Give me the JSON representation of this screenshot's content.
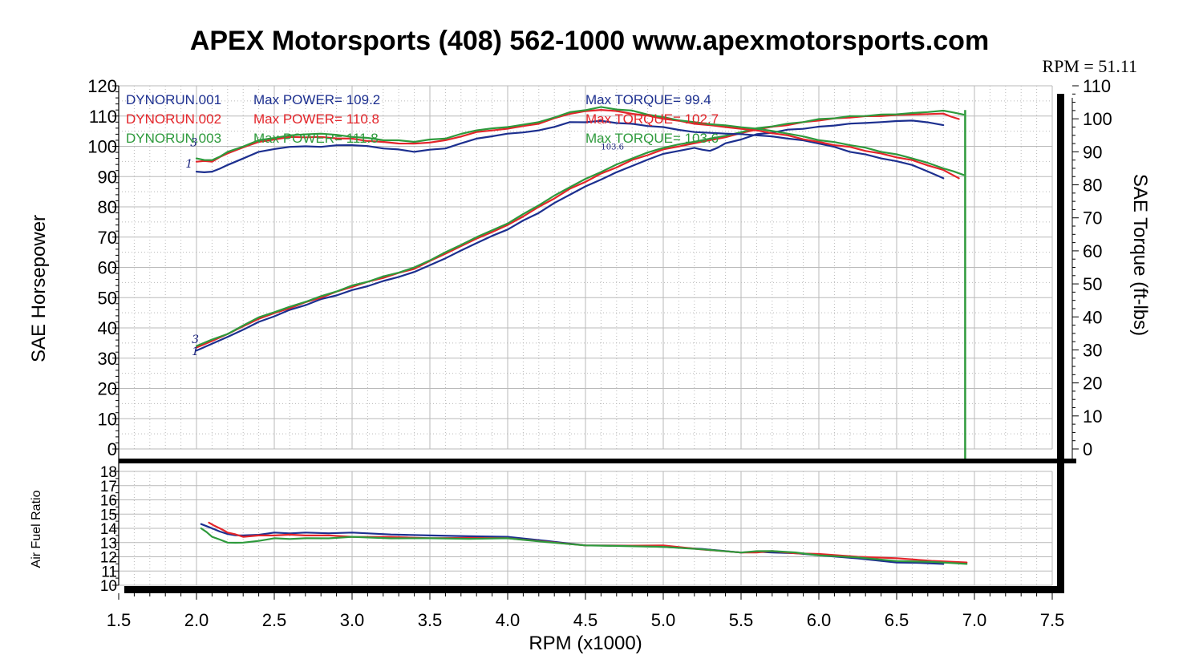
{
  "page": {
    "title": "APEX Motorsports (408) 562-1000 www.apexmotorsports.com",
    "rpm_factor_label": "RPM = 51.11"
  },
  "colors": {
    "run1": "#1c2f8f",
    "run2": "#e3252a",
    "run3": "#2e9a3c"
  },
  "chart_data": [
    {
      "type": "line",
      "panel": "power-torque",
      "xlabel": "RPM (x1000)",
      "ylabel": "SAE Horsepower",
      "y2label": "SAE Torque (ft-lbs)",
      "xlim": [
        1.5,
        7.5
      ],
      "ylim": [
        0,
        120
      ],
      "y2lim": [
        0,
        110
      ],
      "x_ticks": [
        "1.5",
        "2.0",
        "2.5",
        "3.0",
        "3.5",
        "4.0",
        "4.5",
        "5.0",
        "5.5",
        "6.0",
        "6.5",
        "7.0",
        "7.5"
      ],
      "y_ticks": [
        "0",
        "10",
        "20",
        "30",
        "40",
        "50",
        "60",
        "70",
        "80",
        "90",
        "100",
        "110",
        "120"
      ],
      "y2_ticks": [
        "0",
        "10",
        "20",
        "30",
        "40",
        "50",
        "60",
        "70",
        "80",
        "90",
        "100",
        "110"
      ],
      "grid": true,
      "legend": [
        {
          "run": "DYNORUN.001",
          "power": "Max POWER= 109.2",
          "torque": "Max TORQUE= 99.4"
        },
        {
          "run": "DYNORUN.002",
          "power": "Max POWER= 110.8",
          "torque": "Max TORQUE= 102.7"
        },
        {
          "run": "DYNORUN.003",
          "power": "Max POWER= 111.8",
          "torque": "Max TORQUE= 103.6"
        }
      ],
      "annotations": [
        {
          "text": "3",
          "x": 1.96,
          "y": 100
        },
        {
          "text": "1",
          "x": 1.93,
          "y": 93
        },
        {
          "text": "3",
          "x": 1.97,
          "y": 35
        },
        {
          "text": "1",
          "x": 1.97,
          "y": 31
        },
        {
          "text": "103.6",
          "x": 4.6,
          "y": 99
        }
      ],
      "series": [
        {
          "name": "DYNORUN.001 Power",
          "axis": "hp",
          "color": "#1c2f8f",
          "x": [
            2.0,
            2.2,
            2.4,
            2.6,
            2.8,
            3.0,
            3.2,
            3.4,
            3.6,
            3.8,
            4.0,
            4.2,
            4.4,
            4.6,
            4.8,
            5.0,
            5.2,
            5.3,
            5.4,
            5.6,
            5.8,
            6.0,
            6.2,
            6.4,
            6.6,
            6.8
          ],
          "values": [
            32.5,
            37,
            42,
            46,
            49.5,
            52.5,
            55.5,
            58.5,
            63,
            68,
            72.5,
            78,
            84,
            89,
            93.5,
            97.5,
            99.5,
            98.5,
            101,
            104,
            105.5,
            106.5,
            107.5,
            108,
            108.5,
            107
          ]
        },
        {
          "name": "DYNORUN.002 Power",
          "axis": "hp",
          "color": "#e3252a",
          "x": [
            2.0,
            2.2,
            2.4,
            2.6,
            2.8,
            3.0,
            3.2,
            3.4,
            3.6,
            3.8,
            4.0,
            4.2,
            4.4,
            4.6,
            4.8,
            5.0,
            5.2,
            5.4,
            5.6,
            5.8,
            6.0,
            6.2,
            6.4,
            6.6,
            6.8,
            6.9
          ],
          "values": [
            33.5,
            38,
            43,
            46.5,
            50,
            53.5,
            56.5,
            59.5,
            64.5,
            69.5,
            74,
            80,
            86,
            91,
            95.5,
            99,
            101,
            103,
            105.5,
            107,
            108.5,
            109.5,
            110,
            110.5,
            110.8,
            109
          ]
        },
        {
          "name": "DYNORUN.003 Power",
          "axis": "hp",
          "color": "#2e9a3c",
          "x": [
            2.0,
            2.2,
            2.4,
            2.6,
            2.8,
            3.0,
            3.2,
            3.4,
            3.6,
            3.8,
            4.0,
            4.2,
            4.4,
            4.6,
            4.8,
            5.0,
            5.2,
            5.4,
            5.6,
            5.8,
            6.0,
            6.2,
            6.4,
            6.6,
            6.8,
            6.93
          ],
          "values": [
            34,
            38,
            43.5,
            47,
            50.5,
            54,
            57,
            60,
            65,
            70,
            74.5,
            80.5,
            86.5,
            91.5,
            96,
            99.5,
            101.5,
            103.5,
            106,
            107.5,
            109,
            110,
            110.5,
            111,
            111.8,
            110.5
          ]
        },
        {
          "name": "DYNORUN.001 Torque",
          "axis": "torque",
          "color": "#1c2f8f",
          "x": [
            2.0,
            2.1,
            2.2,
            2.4,
            2.6,
            2.8,
            3.0,
            3.2,
            3.4,
            3.6,
            3.8,
            4.0,
            4.2,
            4.4,
            4.6,
            4.8,
            5.0,
            5.2,
            5.4,
            5.6,
            5.8,
            6.0,
            6.2,
            6.4,
            6.6,
            6.8
          ],
          "values": [
            84,
            84,
            86,
            90,
            91.5,
            91.5,
            92,
            91,
            90,
            91,
            94,
            95.5,
            96.5,
            99,
            99.4,
            98.5,
            97.5,
            96,
            95.5,
            95,
            94,
            92.5,
            90,
            88,
            86,
            82
          ]
        },
        {
          "name": "DYNORUN.002 Torque",
          "axis": "torque",
          "color": "#e3252a",
          "x": [
            2.0,
            2.1,
            2.2,
            2.4,
            2.6,
            2.8,
            3.0,
            3.2,
            3.4,
            3.6,
            3.8,
            4.0,
            4.2,
            4.4,
            4.6,
            4.8,
            5.0,
            5.2,
            5.4,
            5.6,
            5.8,
            6.0,
            6.2,
            6.4,
            6.6,
            6.8,
            6.9
          ],
          "values": [
            87,
            87,
            89.5,
            93,
            94.5,
            94.5,
            94,
            93,
            92.5,
            93.5,
            96,
            97,
            98.5,
            101.5,
            102.7,
            101.5,
            100,
            98.5,
            97.5,
            96.5,
            95,
            93,
            91.5,
            89.5,
            87.5,
            84.5,
            82
          ]
        },
        {
          "name": "DYNORUN.003 Torque",
          "axis": "torque",
          "color": "#2e9a3c",
          "x": [
            2.0,
            2.1,
            2.2,
            2.4,
            2.6,
            2.8,
            3.0,
            3.2,
            3.4,
            3.6,
            3.8,
            4.0,
            4.2,
            4.4,
            4.6,
            4.8,
            5.0,
            5.2,
            5.4,
            5.6,
            5.8,
            6.0,
            6.2,
            6.4,
            6.6,
            6.8,
            6.93
          ],
          "values": [
            88,
            87.5,
            90,
            93.5,
            95,
            95.5,
            94.5,
            93.5,
            93,
            94,
            96.5,
            97.5,
            99,
            102,
            103.6,
            102.5,
            100.5,
            99,
            98,
            97,
            95.5,
            93.5,
            92,
            90,
            88,
            85,
            83
          ]
        }
      ]
    },
    {
      "type": "line",
      "panel": "air-fuel",
      "ylabel": "Air Fuel Ratio",
      "xlim": [
        1.5,
        7.5
      ],
      "ylim": [
        10,
        18
      ],
      "y_ticks": [
        "10",
        "11",
        "12",
        "13",
        "14",
        "15",
        "16",
        "17",
        "18"
      ],
      "grid": true,
      "series": [
        {
          "name": "DYNORUN.001 AFR",
          "color": "#1c2f8f",
          "x": [
            2.03,
            2.1,
            2.2,
            2.3,
            2.5,
            2.7,
            3.0,
            3.5,
            4.0,
            4.5,
            5.0,
            5.5,
            5.7,
            6.0,
            6.5,
            6.8
          ],
          "values": [
            14.3,
            14.0,
            13.6,
            13.5,
            13.7,
            13.7,
            13.7,
            13.5,
            13.4,
            12.8,
            12.7,
            12.3,
            12.3,
            12.1,
            11.6,
            11.5
          ]
        },
        {
          "name": "DYNORUN.002 AFR",
          "color": "#e3252a",
          "x": [
            2.08,
            2.15,
            2.2,
            2.3,
            2.5,
            2.7,
            3.0,
            3.5,
            4.0,
            4.5,
            5.0,
            5.5,
            5.7,
            6.0,
            6.5,
            6.95
          ],
          "values": [
            14.4,
            14.0,
            13.7,
            13.4,
            13.5,
            13.5,
            13.4,
            13.3,
            13.3,
            12.8,
            12.8,
            12.3,
            12.4,
            12.2,
            11.9,
            11.6
          ]
        },
        {
          "name": "DYNORUN.003 AFR",
          "color": "#2e9a3c",
          "x": [
            2.03,
            2.1,
            2.2,
            2.3,
            2.5,
            2.7,
            3.0,
            3.5,
            4.0,
            4.5,
            5.0,
            5.5,
            5.7,
            6.0,
            6.5,
            6.95
          ],
          "values": [
            14.0,
            13.4,
            13.0,
            13.0,
            13.3,
            13.3,
            13.4,
            13.3,
            13.3,
            12.8,
            12.7,
            12.3,
            12.4,
            12.1,
            11.7,
            11.5
          ]
        }
      ]
    }
  ]
}
